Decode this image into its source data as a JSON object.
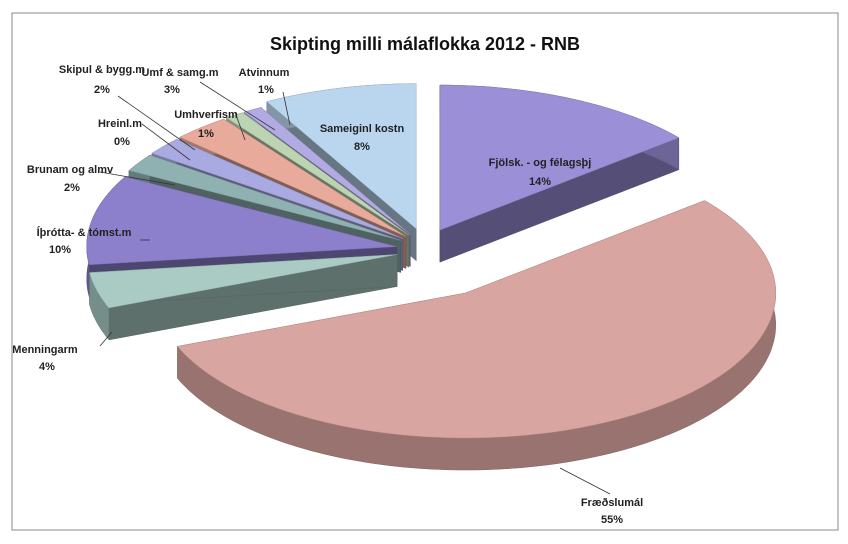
{
  "chart_data": {
    "type": "pie",
    "title": "Skipting milli málaflokka 2012 - RNB",
    "categories": [
      "Fjölsk. - og félagsþj",
      "Fræðslumál",
      "Menningarm",
      "Íþrótta- & tómst.m",
      "Brunam og almv",
      "Hreinl.m",
      "Skipul & bygg.m",
      "Umf & samg.m",
      "Umhverfism",
      "Atvinnum",
      "Sameiginl kostn"
    ],
    "values": [
      14,
      55,
      4,
      10,
      2,
      0,
      2,
      3,
      1,
      1,
      8
    ],
    "value_labels": [
      "14%",
      "55%",
      "4%",
      "10%",
      "2%",
      "0%",
      "2%",
      "3%",
      "1%",
      "1%",
      "8%"
    ],
    "colors": [
      "#9b8fd8",
      "#d9a5a0",
      "#a9cbc4",
      "#8c7fcc",
      "#8fb1b1",
      "#9a9aa8",
      "#aaaae2",
      "#e8aa9a",
      "#bcd4b2",
      "#b2aae2",
      "#bad6ee"
    ]
  }
}
